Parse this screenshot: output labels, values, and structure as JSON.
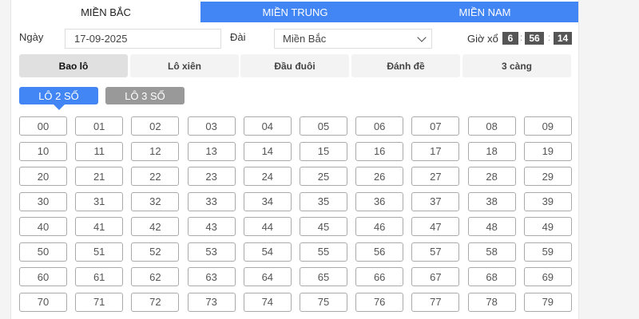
{
  "tabs": [
    {
      "label": "MIỀN BẮC",
      "active": true
    },
    {
      "label": "MIỀN TRUNG"
    },
    {
      "label": "MIỀN NAM"
    }
  ],
  "form": {
    "date_label": "Ngày",
    "date_value": "17-09-2025",
    "station_label": "Đài",
    "station_value": "Miền Bắc",
    "draw_time_label": "Giờ xổ",
    "time": {
      "h": "6",
      "m": "56",
      "s": "14"
    }
  },
  "bet_types": [
    {
      "label": "Bao lô",
      "active": true
    },
    {
      "label": "Lô xiên"
    },
    {
      "label": "Đầu đuôi"
    },
    {
      "label": "Đánh đề"
    },
    {
      "label": "3 càng"
    }
  ],
  "lo_modes": [
    {
      "label": "LÔ 2 SỐ",
      "active": true
    },
    {
      "label": "LÔ 3 SỐ"
    }
  ],
  "numbers": [
    "00",
    "01",
    "02",
    "03",
    "04",
    "05",
    "06",
    "07",
    "08",
    "09",
    "10",
    "11",
    "12",
    "13",
    "14",
    "15",
    "16",
    "17",
    "18",
    "19",
    "20",
    "21",
    "22",
    "23",
    "24",
    "25",
    "26",
    "27",
    "28",
    "29",
    "30",
    "31",
    "32",
    "33",
    "34",
    "35",
    "36",
    "37",
    "38",
    "39",
    "40",
    "41",
    "42",
    "43",
    "44",
    "45",
    "46",
    "47",
    "48",
    "49",
    "50",
    "51",
    "52",
    "53",
    "54",
    "55",
    "56",
    "57",
    "58",
    "59",
    "60",
    "61",
    "62",
    "63",
    "64",
    "65",
    "66",
    "67",
    "68",
    "69",
    "70",
    "71",
    "72",
    "73",
    "74",
    "75",
    "76",
    "77",
    "78",
    "79"
  ],
  "colors": {
    "accent": "#4285f4",
    "inactive_mode": "#999999",
    "time_box": "#555555"
  }
}
